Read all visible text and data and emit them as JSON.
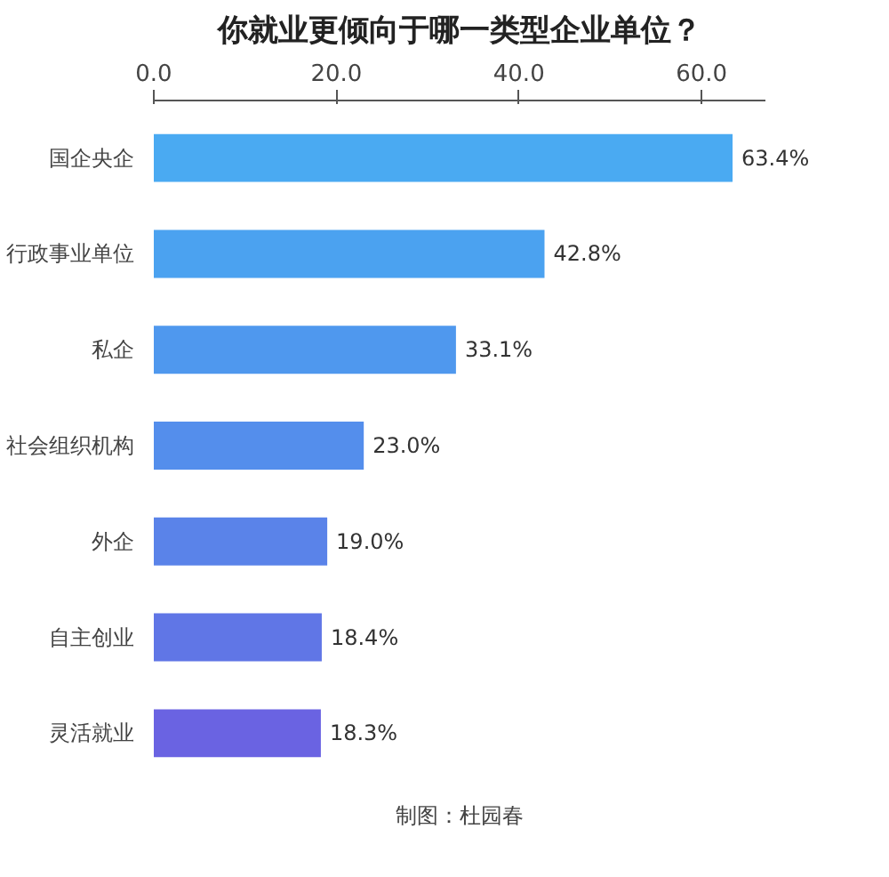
{
  "chart_data": {
    "type": "bar",
    "orientation": "horizontal",
    "title": "你就业更倾向于哪一类型企业单位？",
    "categories": [
      "国企央企",
      "行政事业单位",
      "私企",
      "社会组织机构",
      "外企",
      "自主创业",
      "灵活就业"
    ],
    "values": [
      63.4,
      42.8,
      33.1,
      23.0,
      19.0,
      18.4,
      18.3
    ],
    "value_labels": [
      "63.4%",
      "42.8%",
      "33.1%",
      "23.0%",
      "19.0%",
      "18.4%",
      "18.3%"
    ],
    "colors": [
      "#4aaaf2",
      "#4ba2f0",
      "#4f98ee",
      "#548eec",
      "#5a83e9",
      "#6076e6",
      "#6a63e2"
    ],
    "xlim": [
      0,
      67
    ],
    "xticks": [
      {
        "value": 0,
        "label": "0.0"
      },
      {
        "value": 20,
        "label": "20.0"
      },
      {
        "value": 40,
        "label": "40.0"
      },
      {
        "value": 60,
        "label": "60.0"
      }
    ],
    "grid": false,
    "annotations": [
      "制图：杜园春"
    ]
  }
}
